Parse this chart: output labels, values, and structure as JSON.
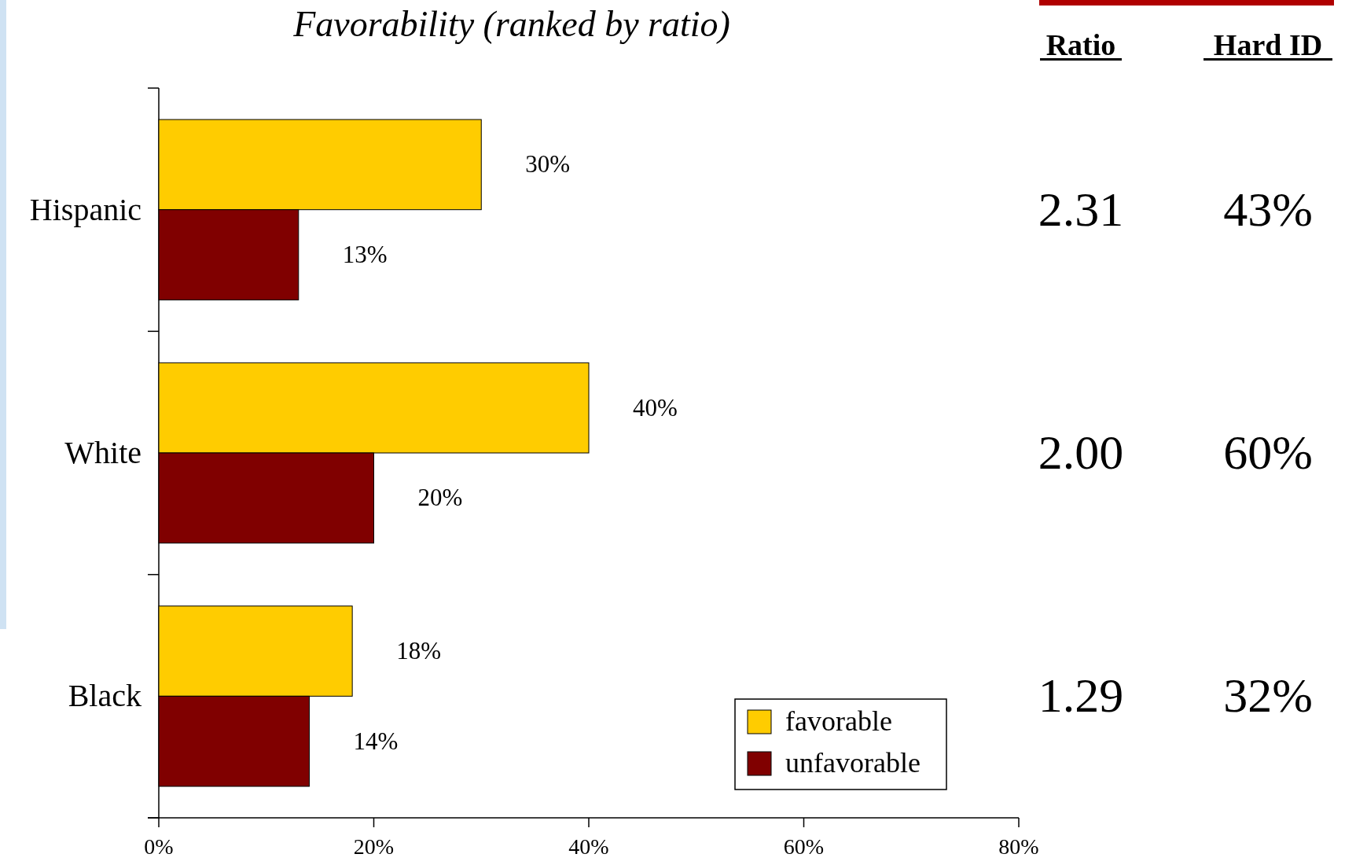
{
  "chart_data": [
    {
      "type": "bar",
      "orientation": "horizontal",
      "title": "Favorability (ranked by ratio)",
      "categories": [
        "Hispanic",
        "White",
        "Black"
      ],
      "series": [
        {
          "name": "favorable",
          "color": "#ffcc00",
          "values": [
            30,
            40,
            18
          ],
          "value_labels": [
            "30%",
            "40%",
            "18%"
          ]
        },
        {
          "name": "unfavorable",
          "color": "#800000",
          "values": [
            13,
            20,
            14
          ],
          "value_labels": [
            "13%",
            "20%",
            "14%"
          ]
        }
      ],
      "xlim": [
        0,
        80
      ],
      "xticks": [
        {
          "value": 0,
          "label": "0%"
        },
        {
          "value": 20,
          "label": "20%"
        },
        {
          "value": 40,
          "label": "40%"
        },
        {
          "value": 60,
          "label": "60%"
        },
        {
          "value": 80,
          "label": "80%"
        }
      ],
      "legend": "bottom right",
      "grid": false
    },
    {
      "type": "other",
      "categories": [
        "Ratio",
        "Hard ID"
      ],
      "annotations": [
        "2.31",
        "43%",
        "2.00",
        "60%",
        "1.29",
        "32%"
      ]
    }
  ]
}
